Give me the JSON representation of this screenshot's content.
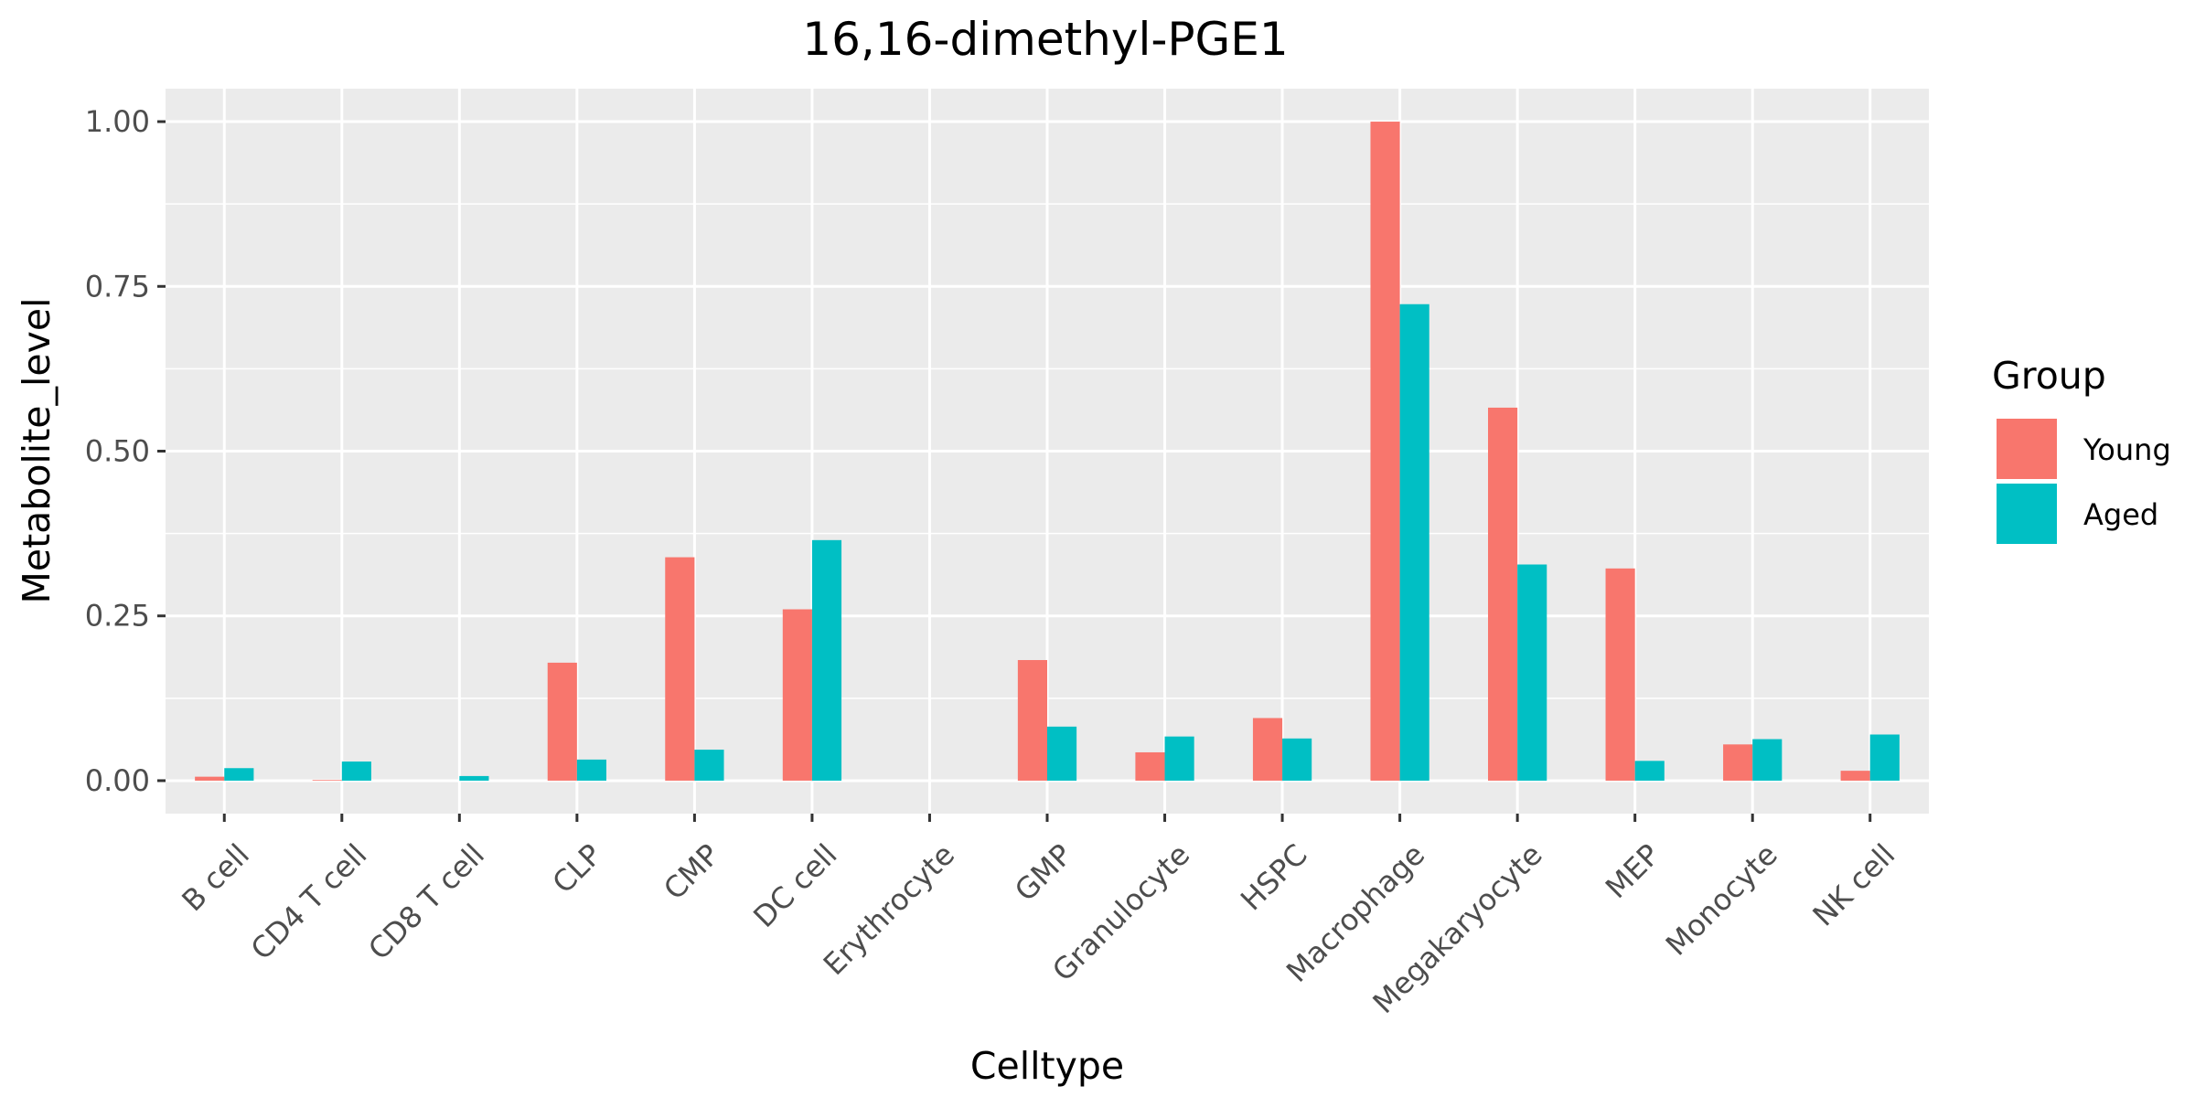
{
  "chart_data": {
    "type": "bar",
    "title": "16,16-dimethyl-PGE1",
    "xlabel": "Celltype",
    "ylabel": "Metabolite_level",
    "ylim": [
      -0.05,
      1.05
    ],
    "yticks": [
      0.0,
      0.25,
      0.5,
      0.75,
      1.0
    ],
    "ytick_labels": [
      "0.00",
      "0.25",
      "0.50",
      "0.75",
      "1.00"
    ],
    "grid": true,
    "legend": {
      "title": "Group",
      "position": "right"
    },
    "categories": [
      "B cell",
      "CD4 T cell",
      "CD8 T cell",
      "CLP",
      "CMP",
      "DC cell",
      "Erythrocyte",
      "GMP",
      "Granulocyte",
      "HSPC",
      "Macrophage",
      "Megakaryocyte",
      "MEP",
      "Monocyte",
      "NK cell"
    ],
    "series": [
      {
        "name": "Young",
        "color": "#F8766D",
        "values": [
          0.006,
          0.001,
          0.0,
          0.179,
          0.339,
          0.26,
          0.0,
          0.183,
          0.043,
          0.095,
          1.0,
          0.566,
          0.322,
          0.055,
          0.015
        ]
      },
      {
        "name": "Aged",
        "color": "#00BFC4",
        "values": [
          0.019,
          0.029,
          0.007,
          0.032,
          0.047,
          0.365,
          0.0,
          0.082,
          0.067,
          0.064,
          0.723,
          0.328,
          0.03,
          0.063,
          0.07
        ]
      }
    ]
  }
}
